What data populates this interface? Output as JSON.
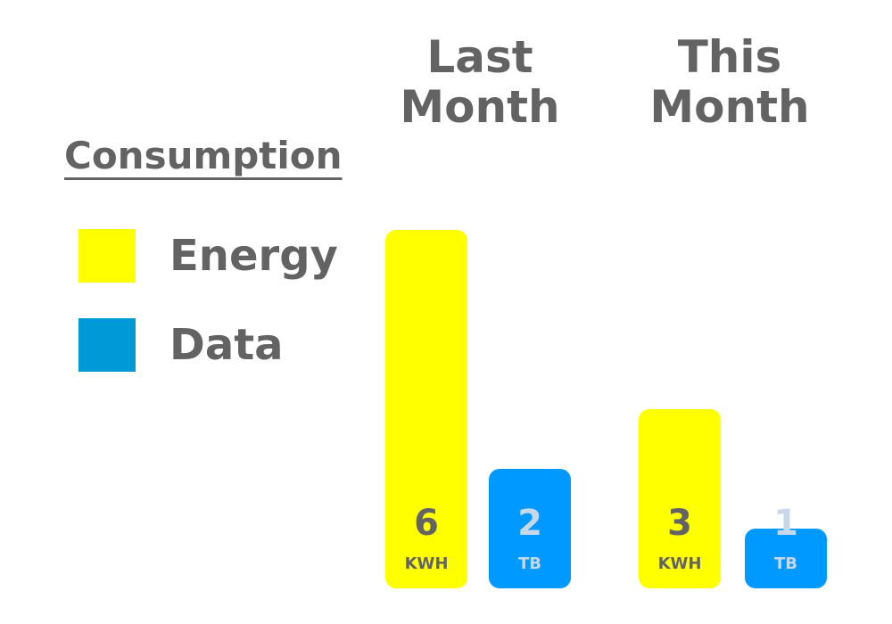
{
  "chart_data": {
    "type": "bar",
    "title": "Consumption",
    "categories": [
      "Last Month",
      "This Month"
    ],
    "series": [
      {
        "name": "Energy",
        "color": "#ffff00",
        "values": [
          6,
          3
        ],
        "units": [
          "KWH",
          "KWH"
        ]
      },
      {
        "name": "Data",
        "color": "#0099ff",
        "values": [
          2,
          1
        ],
        "units": [
          "TB",
          "TB"
        ]
      }
    ],
    "legend_position": "left",
    "grid": false,
    "xlabel": "",
    "ylabel": ""
  },
  "legend": {
    "energy_color": "#ffff00",
    "data_color": "#0099ff"
  },
  "colors": {
    "text": "#636363",
    "bar_value_on_yellow": "#636363",
    "bar_value_on_blue": "#c8d8e8"
  }
}
